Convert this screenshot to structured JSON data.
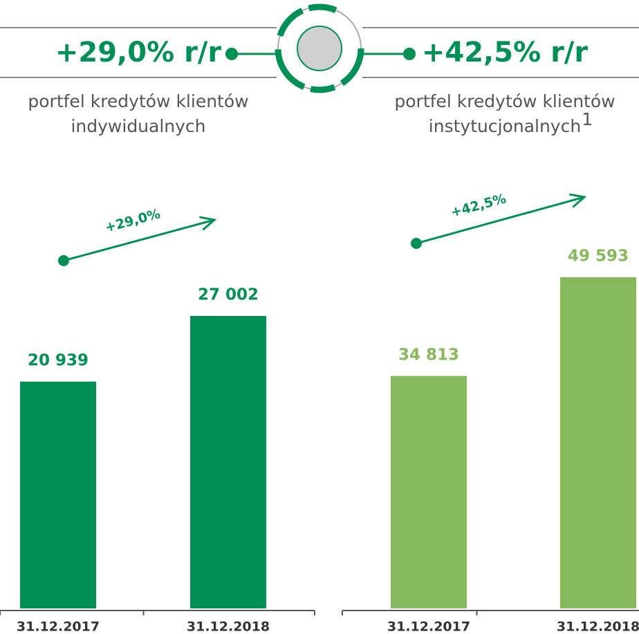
{
  "chart_data": [
    {
      "type": "bar",
      "title": "+29,0% r/r",
      "subtitle": [
        "portfel kredytów klientów",
        "indywidualnych"
      ],
      "annotation": "+29,0%",
      "categories": [
        "31.12.2017",
        "31.12.2018"
      ],
      "values": [
        20939,
        27002
      ],
      "value_labels": [
        "20 939",
        "27 002"
      ],
      "color": "#008f55"
    },
    {
      "type": "bar",
      "title": "+42,5% r/r",
      "subtitle": [
        "portfel kredytów klientów",
        "instytucjonalnych"
      ],
      "footnote": "1",
      "annotation": "+42,5%",
      "categories": [
        "31.12.2017",
        "31.12.2018"
      ],
      "values": [
        34813,
        49593
      ],
      "value_labels": [
        "34 813",
        "49 593"
      ],
      "color": "#86b95b"
    }
  ]
}
